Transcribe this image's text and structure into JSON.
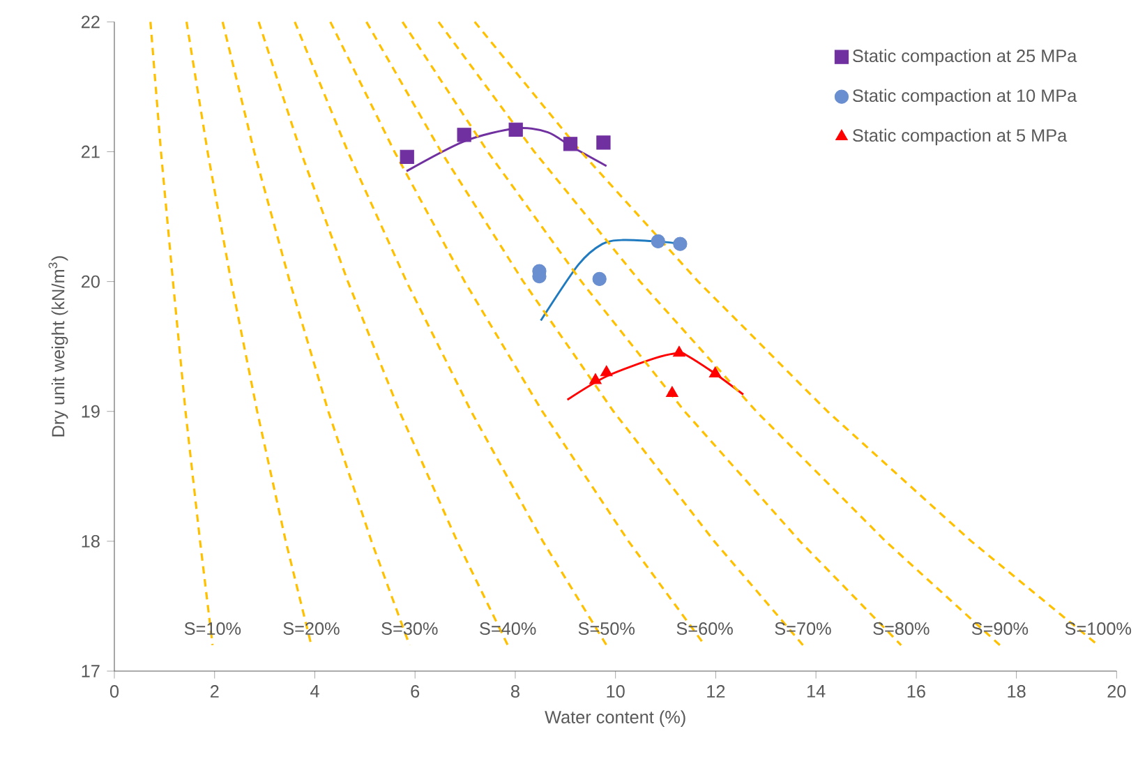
{
  "chart_data": {
    "type": "scatter",
    "xlabel": "Water content (%)",
    "ylabel": "Dry unit weight (kN/m$^{3}$)",
    "xlim": [
      0,
      20
    ],
    "ylim": [
      17,
      22
    ],
    "xticks": [
      0,
      2,
      4,
      6,
      8,
      10,
      12,
      14,
      16,
      18,
      20
    ],
    "yticks": [
      17,
      18,
      19,
      20,
      21,
      22
    ],
    "grid": false,
    "legend": "top right",
    "series": [
      {
        "name": "Static compaction at 25 MPa",
        "color": "#7030a0",
        "marker": "square",
        "x": [
          5.84,
          6.98,
          8.01,
          9.1,
          9.76
        ],
        "values": [
          20.96,
          21.13,
          21.17,
          21.06,
          21.07
        ]
      },
      {
        "name": "Static compaction at 10 MPa",
        "color": "#6a8fd0",
        "marker": "circle",
        "x": [
          8.48,
          8.48,
          9.68,
          10.85,
          11.29
        ],
        "values": [
          20.08,
          20.04,
          20.02,
          20.31,
          20.29
        ]
      },
      {
        "name": "Static compaction at 5 MPa",
        "color": "#ff0000",
        "marker": "triangle",
        "x": [
          9.6,
          9.82,
          11.27,
          11.13,
          11.99
        ],
        "values": [
          19.24,
          19.3,
          19.45,
          19.14,
          19.29
        ]
      },
      {
        "type": "line",
        "color": "#7030a0",
        "marker": "none",
        "line_style": "solid",
        "x": [
          5.83,
          6.98,
          8.01,
          8.65,
          9.12,
          9.82
        ],
        "values": [
          20.85,
          21.08,
          21.18,
          21.15,
          21.04,
          20.89
        ]
      },
      {
        "type": "line",
        "color": "#1f7ac0",
        "marker": "none",
        "line_style": "solid",
        "x": [
          8.51,
          9.26,
          9.74,
          10.15,
          10.79,
          11.35
        ],
        "values": [
          19.7,
          20.13,
          20.29,
          20.32,
          20.31,
          20.29
        ]
      },
      {
        "type": "line",
        "color": "#ff0000",
        "marker": "none",
        "line_style": "solid",
        "x": [
          9.04,
          9.82,
          10.79,
          11.27,
          11.43,
          11.99,
          12.55
        ],
        "values": [
          19.09,
          19.27,
          19.41,
          19.45,
          19.43,
          19.29,
          19.13
        ]
      },
      {
        "type": "line",
        "name": "S=10%",
        "color": "#ffc000",
        "marker": "none",
        "line_style": "dashed",
        "x": [
          0.72,
          0.93,
          1.17,
          1.42,
          1.71,
          1.96
        ],
        "values": [
          22,
          21,
          20,
          19,
          18,
          17.2
        ]
      },
      {
        "type": "line",
        "name": "S=20%",
        "color": "#ffc000",
        "marker": "none",
        "line_style": "dashed",
        "x": [
          1.44,
          1.86,
          2.33,
          2.85,
          3.42,
          3.93
        ],
        "values": [
          22,
          21,
          20,
          19,
          18,
          17.2
        ]
      },
      {
        "type": "line",
        "name": "S=30%",
        "color": "#ffc000",
        "marker": "none",
        "line_style": "dashed",
        "x": [
          2.16,
          2.79,
          3.5,
          4.27,
          5.13,
          5.89
        ],
        "values": [
          22,
          21,
          20,
          19,
          18,
          17.2
        ]
      },
      {
        "type": "line",
        "name": "S=40%",
        "color": "#ffc000",
        "marker": "none",
        "line_style": "dashed",
        "x": [
          2.88,
          3.72,
          4.66,
          5.69,
          6.84,
          7.85
        ],
        "values": [
          22,
          21,
          20,
          19,
          18,
          17.2
        ]
      },
      {
        "type": "line",
        "name": "S=50%",
        "color": "#ffc000",
        "marker": "none",
        "line_style": "dashed",
        "x": [
          3.6,
          4.66,
          5.83,
          7.12,
          8.55,
          9.82
        ],
        "values": [
          22,
          21,
          20,
          19,
          18,
          17.2
        ]
      },
      {
        "type": "line",
        "name": "S=60%",
        "color": "#ffc000",
        "marker": "none",
        "line_style": "dashed",
        "x": [
          4.31,
          5.59,
          6.99,
          8.54,
          10.26,
          11.78
        ],
        "values": [
          22,
          21,
          20,
          19,
          18,
          17.2
        ]
      },
      {
        "type": "line",
        "name": "S=70%",
        "color": "#ffc000",
        "marker": "none",
        "line_style": "dashed",
        "x": [
          5.03,
          6.52,
          8.16,
          9.96,
          11.97,
          13.74
        ],
        "values": [
          22,
          21,
          20,
          19,
          18,
          17.2
        ]
      },
      {
        "type": "line",
        "name": "S=80%",
        "color": "#ffc000",
        "marker": "none",
        "line_style": "dashed",
        "x": [
          5.75,
          7.45,
          9.32,
          11.38,
          13.68,
          15.7
        ],
        "values": [
          22,
          21,
          20,
          19,
          18,
          17.2
        ]
      },
      {
        "type": "line",
        "name": "S=90%",
        "color": "#ffc000",
        "marker": "none",
        "line_style": "dashed",
        "x": [
          6.47,
          8.38,
          10.49,
          12.81,
          15.39,
          17.67
        ],
        "values": [
          22,
          21,
          20,
          19,
          18,
          17.2
        ]
      },
      {
        "type": "line",
        "name": "S=100%",
        "color": "#ffc000",
        "marker": "none",
        "line_style": "dashed",
        "x": [
          7.19,
          9.31,
          11.65,
          14.23,
          17.1,
          19.63
        ],
        "values": [
          22,
          21,
          20,
          19,
          18,
          17.2
        ]
      }
    ]
  }
}
